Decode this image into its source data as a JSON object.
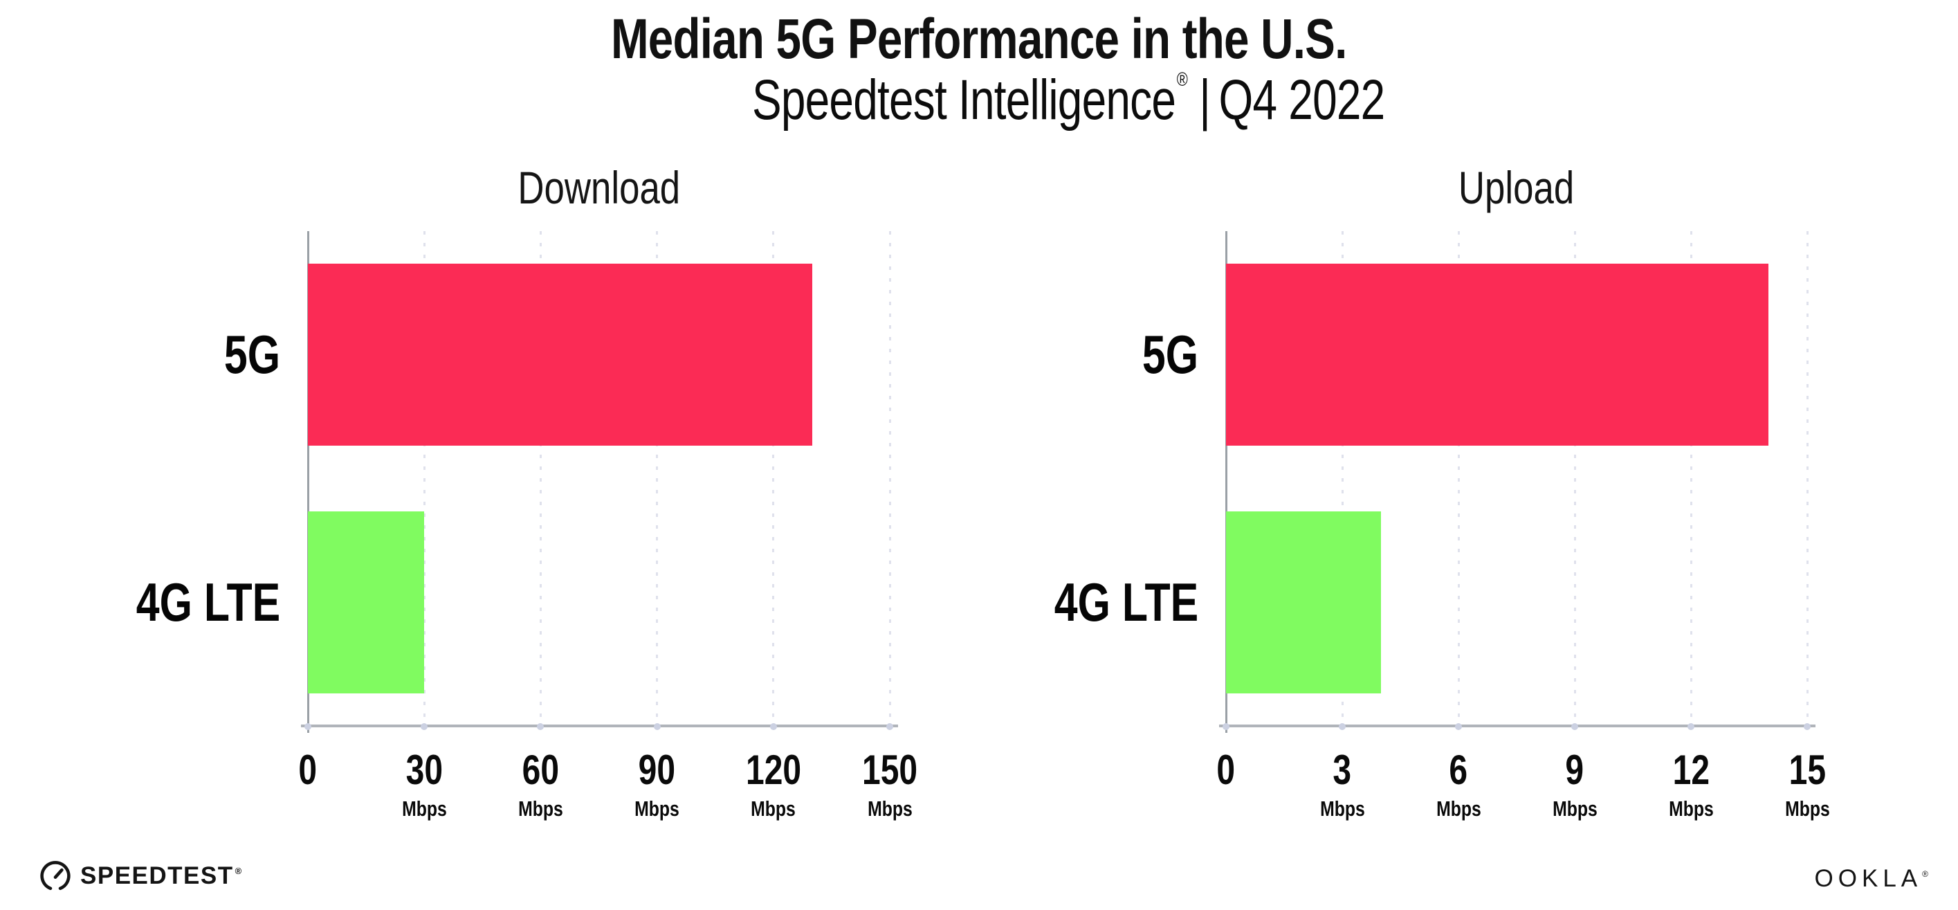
{
  "header": {
    "title": "Median 5G Performance in the U.S.",
    "subtitle_brand": "Speedtest Intelligence",
    "subtitle_reg_mark": "®",
    "subtitle_separator": "|",
    "subtitle_period": "Q4 2022"
  },
  "colors": {
    "bar_5g": "#fb2b55",
    "bar_4g_lte": "#80fb60",
    "axis": "#9aa0a6",
    "grid": "#dfe1ec",
    "text": "#111111",
    "background": "#ffffff"
  },
  "chart_data": [
    {
      "type": "bar",
      "orientation": "horizontal",
      "title": "Download",
      "categories": [
        "5G",
        "4G LTE"
      ],
      "values": [
        130,
        30
      ],
      "unit": "Mbps",
      "xlim": [
        0,
        150
      ],
      "xticks": [
        0,
        30,
        60,
        90,
        120,
        150
      ],
      "bar_colors": [
        "#fb2b55",
        "#80fb60"
      ],
      "grid": "dotted-vertical",
      "legend": "none"
    },
    {
      "type": "bar",
      "orientation": "horizontal",
      "title": "Upload",
      "categories": [
        "5G",
        "4G LTE"
      ],
      "values": [
        14,
        4
      ],
      "unit": "Mbps",
      "xlim": [
        0,
        15
      ],
      "xticks": [
        0,
        3,
        6,
        9,
        12,
        15
      ],
      "bar_colors": [
        "#fb2b55",
        "#80fb60"
      ],
      "grid": "dotted-vertical",
      "legend": "none"
    }
  ],
  "footer": {
    "speedtest_label": "SPEEDTEST",
    "speedtest_reg": "®",
    "ookla_label": "OOKLA",
    "ookla_reg": "®"
  }
}
